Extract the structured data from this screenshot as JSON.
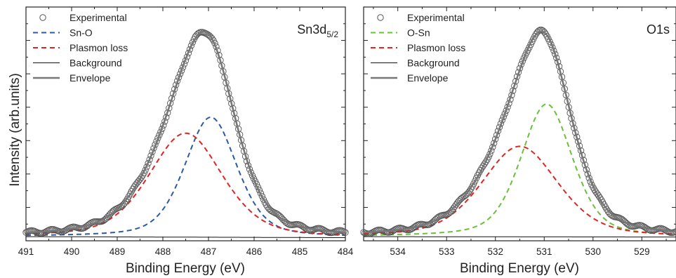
{
  "figure": {
    "ylabel": "Intensity (arb.units)"
  },
  "colors": {
    "experimental": "#555555",
    "sn_o": "#2b5aa8",
    "o_sn": "#6cbf3c",
    "plasmon": "#e02424",
    "background": "#111111",
    "envelope": "#777777"
  },
  "chart_data": [
    {
      "type": "line",
      "title": "Sn3d",
      "title_subscript": "5/2",
      "xlabel": "Binding Energy (eV)",
      "ylabel": "Intensity (arb.units)",
      "xlim": [
        491,
        484
      ],
      "x_reversed": true,
      "xticks": [
        "491",
        "490",
        "489",
        "488",
        "487",
        "486",
        "485",
        "484"
      ],
      "ylim": [
        0,
        1.12
      ],
      "y_tick_labels_shown": false,
      "grid": false,
      "legend_position": "top-left",
      "series": [
        {
          "name": "Experimental",
          "kind": "scatter-open-circle",
          "x_range": [
            491,
            484
          ],
          "peak_x": 487.15,
          "peak_y": 1.0,
          "baseline": 0.02
        },
        {
          "name": "Sn-O",
          "kind": "dashed",
          "peak_x": 486.95,
          "peak_y": 0.6,
          "fwhm": 1.35
        },
        {
          "name": "Plasmon loss",
          "kind": "dashed",
          "peak_x": 487.5,
          "peak_y": 0.52,
          "fwhm": 1.9
        },
        {
          "name": "Background",
          "kind": "solid-thin",
          "x": [
            491,
            484
          ],
          "y": [
            0.02,
            0.015
          ]
        },
        {
          "name": "Envelope",
          "kind": "solid-thick",
          "peak_x": 487.15,
          "peak_y": 1.0
        }
      ]
    },
    {
      "type": "line",
      "title": "O1s",
      "xlabel": "Binding Energy (eV)",
      "ylabel": "Intensity (arb.units)",
      "xlim": [
        534.7,
        528.3
      ],
      "x_reversed": true,
      "xticks": [
        "534",
        "533",
        "532",
        "531",
        "530",
        "529"
      ],
      "ylim": [
        0,
        1.12
      ],
      "y_tick_labels_shown": false,
      "grid": false,
      "legend_position": "top-left",
      "series": [
        {
          "name": "Experimental",
          "kind": "scatter-open-circle",
          "x_range": [
            534.7,
            528.3
          ],
          "peak_x": 531.1,
          "peak_y": 1.0,
          "baseline": 0.03
        },
        {
          "name": "O-Sn",
          "kind": "dashed",
          "peak_x": 530.95,
          "peak_y": 0.66,
          "fwhm": 1.25
        },
        {
          "name": "Plasmon loss",
          "kind": "dashed",
          "peak_x": 531.5,
          "peak_y": 0.45,
          "fwhm": 1.85
        },
        {
          "name": "Background",
          "kind": "solid-thin",
          "x": [
            534.7,
            528.3
          ],
          "y": [
            0.02,
            0.018
          ]
        },
        {
          "name": "Envelope",
          "kind": "solid-thick",
          "peak_x": 531.1,
          "peak_y": 1.0
        }
      ]
    }
  ]
}
